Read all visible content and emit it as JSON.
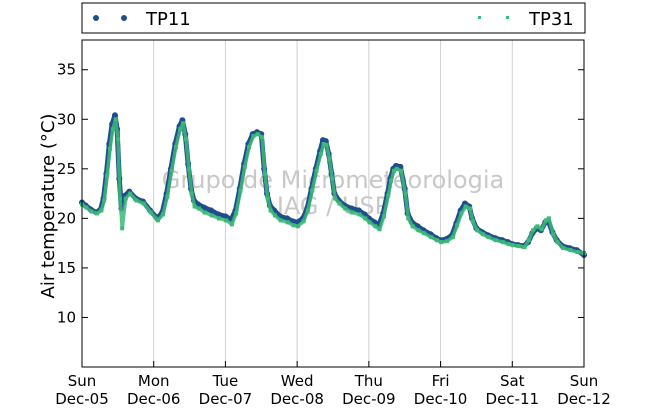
{
  "chart_data": {
    "type": "scatter",
    "title": "",
    "xlabel": "",
    "ylabel": "Air temperature (°C)",
    "ylim": [
      5,
      38
    ],
    "yticks": [
      10,
      15,
      20,
      25,
      30,
      35
    ],
    "x_range_days": [
      0,
      7
    ],
    "x_ticks": [
      {
        "day": 0,
        "weekday": "Sun",
        "date": "Dec-05"
      },
      {
        "day": 1,
        "weekday": "Mon",
        "date": "Dec-06"
      },
      {
        "day": 2,
        "weekday": "Tue",
        "date": "Dec-07"
      },
      {
        "day": 3,
        "weekday": "Wed",
        "date": "Dec-08"
      },
      {
        "day": 4,
        "weekday": "Thu",
        "date": "Dec-09"
      },
      {
        "day": 5,
        "weekday": "Fri",
        "date": "Dec-10"
      },
      {
        "day": 6,
        "weekday": "Sat",
        "date": "Dec-11"
      },
      {
        "day": 7,
        "weekday": "Sun",
        "date": "Dec-12"
      }
    ],
    "grid": "vertical",
    "legend_position": "top",
    "watermark": [
      "Grupo de Micrometeorologia",
      "IAG / USP"
    ],
    "series": [
      {
        "name": "TP11",
        "color": "#1f4e8c",
        "marker": "dot",
        "points": [
          [
            0.0,
            21.6
          ],
          [
            0.05,
            21.3
          ],
          [
            0.12,
            20.9
          ],
          [
            0.2,
            20.6
          ],
          [
            0.26,
            20.9
          ],
          [
            0.3,
            22.0
          ],
          [
            0.34,
            24.5
          ],
          [
            0.38,
            27.5
          ],
          [
            0.42,
            29.5
          ],
          [
            0.46,
            30.4
          ],
          [
            0.49,
            29.0
          ],
          [
            0.52,
            24.0
          ],
          [
            0.55,
            21.0
          ],
          [
            0.6,
            22.3
          ],
          [
            0.66,
            22.7
          ],
          [
            0.75,
            22.0
          ],
          [
            0.85,
            21.7
          ],
          [
            0.95,
            20.8
          ],
          [
            1.05,
            20.0
          ],
          [
            1.12,
            20.6
          ],
          [
            1.18,
            22.5
          ],
          [
            1.24,
            25.0
          ],
          [
            1.3,
            27.5
          ],
          [
            1.36,
            29.3
          ],
          [
            1.4,
            29.9
          ],
          [
            1.44,
            28.5
          ],
          [
            1.48,
            25.5
          ],
          [
            1.52,
            23.0
          ],
          [
            1.56,
            21.8
          ],
          [
            1.62,
            21.4
          ],
          [
            1.7,
            21.1
          ],
          [
            1.8,
            20.8
          ],
          [
            1.9,
            20.4
          ],
          [
            2.0,
            20.2
          ],
          [
            2.08,
            19.9
          ],
          [
            2.14,
            20.8
          ],
          [
            2.2,
            23.0
          ],
          [
            2.26,
            25.5
          ],
          [
            2.32,
            27.5
          ],
          [
            2.38,
            28.5
          ],
          [
            2.44,
            28.7
          ],
          [
            2.5,
            28.5
          ],
          [
            2.54,
            25.0
          ],
          [
            2.58,
            22.5
          ],
          [
            2.62,
            21.3
          ],
          [
            2.68,
            20.8
          ],
          [
            2.76,
            20.2
          ],
          [
            2.86,
            20.0
          ],
          [
            2.94,
            19.7
          ],
          [
            3.0,
            19.6
          ],
          [
            3.08,
            20.0
          ],
          [
            3.14,
            21.0
          ],
          [
            3.2,
            23.0
          ],
          [
            3.26,
            25.0
          ],
          [
            3.32,
            26.8
          ],
          [
            3.36,
            27.9
          ],
          [
            3.4,
            27.8
          ],
          [
            3.44,
            26.5
          ],
          [
            3.48,
            24.5
          ],
          [
            3.52,
            22.5
          ],
          [
            3.58,
            21.8
          ],
          [
            3.66,
            21.3
          ],
          [
            3.76,
            21.0
          ],
          [
            3.86,
            20.8
          ],
          [
            3.94,
            20.4
          ],
          [
            4.0,
            20.0
          ],
          [
            4.08,
            19.6
          ],
          [
            4.14,
            19.3
          ],
          [
            4.2,
            20.5
          ],
          [
            4.26,
            22.5
          ],
          [
            4.3,
            24.0
          ],
          [
            4.34,
            25.0
          ],
          [
            4.38,
            25.3
          ],
          [
            4.44,
            25.2
          ],
          [
            4.5,
            23.0
          ],
          [
            4.54,
            20.5
          ],
          [
            4.6,
            19.6
          ],
          [
            4.68,
            19.2
          ],
          [
            4.76,
            18.8
          ],
          [
            4.86,
            18.4
          ],
          [
            4.94,
            18.0
          ],
          [
            5.0,
            17.8
          ],
          [
            5.08,
            17.9
          ],
          [
            5.16,
            18.3
          ],
          [
            5.22,
            19.5
          ],
          [
            5.28,
            20.8
          ],
          [
            5.34,
            21.5
          ],
          [
            5.4,
            21.2
          ],
          [
            5.44,
            20.0
          ],
          [
            5.5,
            19.0
          ],
          [
            5.58,
            18.6
          ],
          [
            5.66,
            18.3
          ],
          [
            5.76,
            18.0
          ],
          [
            5.86,
            17.8
          ],
          [
            5.94,
            17.6
          ],
          [
            6.0,
            17.4
          ],
          [
            6.08,
            17.3
          ],
          [
            6.16,
            17.2
          ],
          [
            6.22,
            17.6
          ],
          [
            6.28,
            18.5
          ],
          [
            6.34,
            19.0
          ],
          [
            6.4,
            18.8
          ],
          [
            6.46,
            19.6
          ],
          [
            6.5,
            19.8
          ],
          [
            6.56,
            18.6
          ],
          [
            6.62,
            17.8
          ],
          [
            6.7,
            17.2
          ],
          [
            6.8,
            17.0
          ],
          [
            6.9,
            16.8
          ],
          [
            7.0,
            16.3
          ]
        ]
      },
      {
        "name": "TP31",
        "color": "#3cb878",
        "marker": "square",
        "points": [
          [
            0.0,
            21.4
          ],
          [
            0.06,
            21.1
          ],
          [
            0.13,
            20.7
          ],
          [
            0.21,
            20.5
          ],
          [
            0.27,
            20.8
          ],
          [
            0.31,
            21.8
          ],
          [
            0.35,
            24.3
          ],
          [
            0.39,
            27.0
          ],
          [
            0.43,
            29.0
          ],
          [
            0.47,
            30.0
          ],
          [
            0.5,
            28.0
          ],
          [
            0.53,
            22.0
          ],
          [
            0.56,
            19.0
          ],
          [
            0.61,
            22.0
          ],
          [
            0.67,
            22.5
          ],
          [
            0.76,
            21.8
          ],
          [
            0.86,
            21.5
          ],
          [
            0.96,
            20.6
          ],
          [
            1.06,
            19.8
          ],
          [
            1.13,
            20.4
          ],
          [
            1.19,
            22.2
          ],
          [
            1.25,
            24.8
          ],
          [
            1.31,
            27.2
          ],
          [
            1.37,
            29.0
          ],
          [
            1.41,
            29.6
          ],
          [
            1.45,
            28.0
          ],
          [
            1.49,
            25.0
          ],
          [
            1.53,
            22.5
          ],
          [
            1.57,
            21.2
          ],
          [
            1.63,
            21.0
          ],
          [
            1.71,
            20.6
          ],
          [
            1.81,
            20.3
          ],
          [
            1.91,
            20.0
          ],
          [
            2.01,
            19.8
          ],
          [
            2.09,
            19.4
          ],
          [
            2.15,
            20.5
          ],
          [
            2.21,
            22.8
          ],
          [
            2.27,
            25.2
          ],
          [
            2.33,
            27.2
          ],
          [
            2.39,
            28.3
          ],
          [
            2.45,
            28.5
          ],
          [
            2.51,
            28.2
          ],
          [
            2.55,
            24.5
          ],
          [
            2.59,
            22.0
          ],
          [
            2.63,
            20.8
          ],
          [
            2.69,
            20.3
          ],
          [
            2.77,
            19.8
          ],
          [
            2.87,
            19.6
          ],
          [
            2.95,
            19.3
          ],
          [
            3.01,
            19.2
          ],
          [
            3.09,
            19.7
          ],
          [
            3.15,
            20.8
          ],
          [
            3.21,
            22.8
          ],
          [
            3.27,
            24.8
          ],
          [
            3.33,
            26.5
          ],
          [
            3.37,
            27.5
          ],
          [
            3.41,
            27.4
          ],
          [
            3.45,
            26.0
          ],
          [
            3.49,
            24.0
          ],
          [
            3.53,
            22.0
          ],
          [
            3.59,
            21.5
          ],
          [
            3.67,
            21.0
          ],
          [
            3.77,
            20.6
          ],
          [
            3.87,
            20.4
          ],
          [
            3.95,
            20.0
          ],
          [
            4.01,
            19.6
          ],
          [
            4.09,
            19.2
          ],
          [
            4.15,
            18.9
          ],
          [
            4.21,
            20.2
          ],
          [
            4.27,
            22.3
          ],
          [
            4.31,
            23.8
          ],
          [
            4.35,
            24.8
          ],
          [
            4.39,
            25.0
          ],
          [
            4.45,
            24.8
          ],
          [
            4.51,
            22.5
          ],
          [
            4.55,
            20.0
          ],
          [
            4.61,
            19.2
          ],
          [
            4.69,
            18.8
          ],
          [
            4.77,
            18.5
          ],
          [
            4.87,
            18.1
          ],
          [
            4.95,
            17.8
          ],
          [
            5.01,
            17.6
          ],
          [
            5.09,
            17.7
          ],
          [
            5.17,
            18.1
          ],
          [
            5.23,
            19.3
          ],
          [
            5.29,
            20.5
          ],
          [
            5.35,
            21.2
          ],
          [
            5.41,
            21.0
          ],
          [
            5.45,
            19.7
          ],
          [
            5.51,
            18.8
          ],
          [
            5.59,
            18.4
          ],
          [
            5.67,
            18.1
          ],
          [
            5.77,
            17.8
          ],
          [
            5.87,
            17.6
          ],
          [
            5.95,
            17.4
          ],
          [
            6.01,
            17.3
          ],
          [
            6.09,
            17.2
          ],
          [
            6.17,
            17.1
          ],
          [
            6.23,
            17.8
          ],
          [
            6.29,
            18.8
          ],
          [
            6.35,
            19.2
          ],
          [
            6.41,
            18.9
          ],
          [
            6.47,
            19.8
          ],
          [
            6.51,
            20.0
          ],
          [
            6.57,
            18.4
          ],
          [
            6.63,
            17.6
          ],
          [
            6.71,
            17.0
          ],
          [
            6.81,
            16.8
          ],
          [
            6.91,
            16.6
          ],
          [
            7.0,
            16.5
          ]
        ]
      }
    ]
  }
}
